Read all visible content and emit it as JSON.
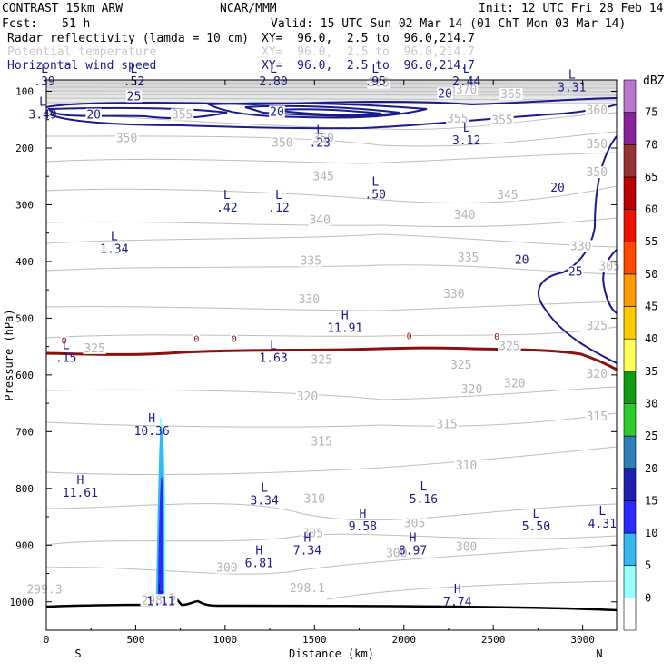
{
  "header": {
    "model": "CONTRAST 15km ARW",
    "org": "NCAR/MMM",
    "init": "Init: 12 UTC Fri 28 Feb 14",
    "fcst_label": "Fcst:",
    "fcst_value": "51 h",
    "valid": "Valid: 15 UTC Sun 02 Mar 14 (01 ChT Mon 03 Mar 14)",
    "fields": [
      {
        "name": "Radar reflectivity (lamda = 10 cm)",
        "xy": "XY=  96.0,  2.5 to  96.0,214.7",
        "color": "#000000"
      },
      {
        "name": "Potential temperature",
        "xy": "XY=  96.0,  2.5 to  96.0,214.7",
        "color": "#c8c8c8"
      },
      {
        "name": "Horizontal wind speed",
        "xy": "XY=  96.0,  2.5 to  96.0,214.7",
        "color": "#1a1a8c"
      }
    ]
  },
  "chart_data": {
    "type": "cross-section contour",
    "x_axis": {
      "label": "Distance (km)",
      "range": [
        0,
        3190
      ],
      "ticks": [
        0,
        500,
        1000,
        1500,
        2000,
        2500,
        3000
      ],
      "tick_labels": [
        "0",
        "500",
        "1000",
        "1500",
        "2000",
        "2500",
        "3000"
      ],
      "left_end": "S",
      "right_end": "N"
    },
    "y_axis": {
      "label": "Pressure (hPa)",
      "range": [
        1050,
        80
      ],
      "ticks": [
        100,
        200,
        300,
        400,
        500,
        600,
        700,
        800,
        900,
        1000
      ],
      "tick_labels": [
        "100",
        "200",
        "300",
        "400",
        "500",
        "600",
        "700",
        "800",
        "900",
        "1000"
      ]
    },
    "colorbar": {
      "unit": "dBZ",
      "levels": [
        "0",
        "5",
        "10",
        "15",
        "20",
        "25",
        "30",
        "35",
        "40",
        "45",
        "50",
        "55",
        "60",
        "65",
        "70",
        "75"
      ],
      "colors": [
        "#ffffff",
        "#98ffff",
        "#35b7f0",
        "#2b2bff",
        "#2020b0",
        "#2f7fb8",
        "#2ccc2c",
        "#0f9a0f",
        "#ffff55",
        "#ffcc00",
        "#ff9900",
        "#ff4a00",
        "#ee1100",
        "#bb0000",
        "#993333",
        "#882299",
        "#bb77cc"
      ]
    },
    "theta_labels": [
      {
        "text": "385",
        "x": 1860,
        "p": 92
      },
      {
        "text": "370",
        "x": 2350,
        "p": 104
      },
      {
        "text": "365",
        "x": 2600,
        "p": 112
      },
      {
        "text": "355",
        "x": 760,
        "p": 148
      },
      {
        "text": "355",
        "x": 2300,
        "p": 155
      },
      {
        "text": "355",
        "x": 2550,
        "p": 158
      },
      {
        "text": "360",
        "x": 3080,
        "p": 140
      },
      {
        "text": "350",
        "x": 450,
        "p": 190
      },
      {
        "text": "350",
        "x": 1320,
        "p": 198
      },
      {
        "text": "350",
        "x": 1550,
        "p": 190
      },
      {
        "text": "345",
        "x": 1550,
        "p": 257
      },
      {
        "text": "345",
        "x": 2580,
        "p": 290
      },
      {
        "text": "340",
        "x": 1530,
        "p": 334
      },
      {
        "text": "340",
        "x": 2340,
        "p": 325
      },
      {
        "text": "335",
        "x": 1480,
        "p": 406
      },
      {
        "text": "335",
        "x": 2360,
        "p": 400
      },
      {
        "text": "330",
        "x": 1470,
        "p": 474
      },
      {
        "text": "330",
        "x": 2280,
        "p": 464
      },
      {
        "text": "325",
        "x": 1540,
        "p": 580
      },
      {
        "text": "325",
        "x": 2320,
        "p": 589
      },
      {
        "text": "320",
        "x": 1460,
        "p": 645
      },
      {
        "text": "320",
        "x": 2380,
        "p": 632
      },
      {
        "text": "320",
        "x": 2620,
        "p": 622
      },
      {
        "text": "315",
        "x": 1540,
        "p": 724
      },
      {
        "text": "315",
        "x": 2240,
        "p": 694
      },
      {
        "text": "310",
        "x": 1500,
        "p": 825
      },
      {
        "text": "310",
        "x": 2350,
        "p": 767
      },
      {
        "text": "305",
        "x": 1490,
        "p": 886
      },
      {
        "text": "305",
        "x": 2060,
        "p": 868
      },
      {
        "text": "300",
        "x": 1010,
        "p": 947
      },
      {
        "text": "300",
        "x": 1960,
        "p": 921
      },
      {
        "text": "300",
        "x": 2350,
        "p": 910
      },
      {
        "text": "299.3",
        "x": -10,
        "p": 985
      },
      {
        "text": "298.1",
        "x": 1460,
        "p": 983
      },
      {
        "text": "298.2",
        "x": 630,
        "p": 1004
      },
      {
        "text": "350",
        "x": 3080,
        "p": 200
      },
      {
        "text": "350",
        "x": 3080,
        "p": 250
      },
      {
        "text": "330",
        "x": 2990,
        "p": 380
      },
      {
        "text": "305",
        "x": 3150,
        "p": 415
      },
      {
        "text": "325",
        "x": 3080,
        "p": 520
      },
      {
        "text": "325",
        "x": 2590,
        "p": 556
      },
      {
        "text": "315",
        "x": 3080,
        "p": 680
      },
      {
        "text": "320",
        "x": 3080,
        "p": 605
      },
      {
        "text": "325",
        "x": 270,
        "p": 560
      }
    ],
    "wind_labels": [
      {
        "text": "25",
        "x": 490,
        "p": 116
      },
      {
        "text": "20",
        "x": 265,
        "p": 148
      },
      {
        "text": "20",
        "x": 1290,
        "p": 143
      },
      {
        "text": "20",
        "x": 2230,
        "p": 111
      },
      {
        "text": "20",
        "x": 2860,
        "p": 277
      },
      {
        "text": "20",
        "x": 2660,
        "p": 404
      },
      {
        "text": "25",
        "x": 2960,
        "p": 425
      }
    ],
    "zero_contour_labels": [
      {
        "text": "0",
        "x": 100,
        "p": 545
      },
      {
        "text": "0",
        "x": 840,
        "p": 542
      },
      {
        "text": "0",
        "x": 1050,
        "p": 542
      },
      {
        "text": "0",
        "x": 2030,
        "p": 537
      },
      {
        "text": "0",
        "x": 2520,
        "p": 538
      }
    ],
    "extrema": [
      {
        "type": "L",
        "value": ".39",
        "x": -10,
        "p": 90
      },
      {
        "type": "L",
        "value": ".52",
        "x": 490,
        "p": 90
      },
      {
        "type": "L",
        "value": "2.80",
        "x": 1270,
        "p": 90
      },
      {
        "type": "L",
        "value": ".95",
        "x": 1840,
        "p": 90
      },
      {
        "type": "L",
        "value": "2.44",
        "x": 2350,
        "p": 90
      },
      {
        "type": "L",
        "value": "3.31",
        "x": 2940,
        "p": 100
      },
      {
        "type": "L",
        "value": "3.49",
        "x": -20,
        "p": 148
      },
      {
        "type": "L",
        "value": ".23",
        "x": 1530,
        "p": 198
      },
      {
        "type": "L",
        "value": "3.12",
        "x": 2350,
        "p": 194
      },
      {
        "type": "L",
        "value": ".50",
        "x": 1840,
        "p": 289
      },
      {
        "type": "L",
        "value": ".42",
        "x": 1010,
        "p": 312
      },
      {
        "type": "L",
        "value": ".12",
        "x": 1300,
        "p": 312
      },
      {
        "type": "L",
        "value": "1.34",
        "x": 380,
        "p": 385
      },
      {
        "type": "H",
        "value": "11.91",
        "x": 1670,
        "p": 524
      },
      {
        "type": "L",
        "value": ".15",
        "x": 110,
        "p": 577
      },
      {
        "type": "L",
        "value": "1.63",
        "x": 1270,
        "p": 577
      },
      {
        "type": "H",
        "value": "10.36",
        "x": 590,
        "p": 706
      },
      {
        "type": "H",
        "value": "11.61",
        "x": 190,
        "p": 815
      },
      {
        "type": "L",
        "value": "3.34",
        "x": 1220,
        "p": 828
      },
      {
        "type": "L",
        "value": "5.16",
        "x": 2110,
        "p": 826
      },
      {
        "type": "H",
        "value": "9.58",
        "x": 1770,
        "p": 874
      },
      {
        "type": "L",
        "value": "5.50",
        "x": 2740,
        "p": 874
      },
      {
        "type": "L",
        "value": "4.31",
        "x": 3110,
        "p": 869
      },
      {
        "type": "H",
        "value": "7.34",
        "x": 1460,
        "p": 916
      },
      {
        "type": "H",
        "value": "8.97",
        "x": 2050,
        "p": 916
      },
      {
        "type": "H",
        "value": "6.81",
        "x": 1190,
        "p": 939
      },
      {
        "type": "L",
        "value": "1.11",
        "x": 640,
        "p": 1006
      },
      {
        "type": "H",
        "value": "7.74",
        "x": 2300,
        "p": 1007
      }
    ]
  }
}
